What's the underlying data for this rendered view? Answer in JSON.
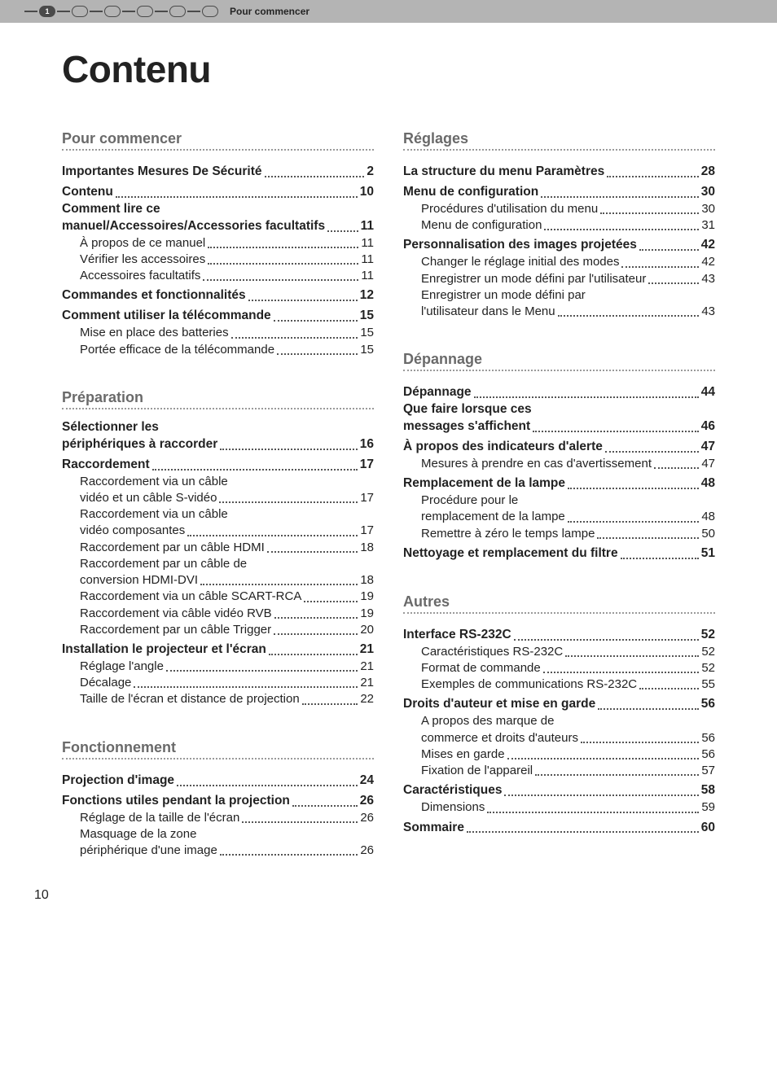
{
  "header": {
    "breadcrumb": "Pour commencer",
    "pill_number": "1"
  },
  "title": "Contenu",
  "page_number": "10",
  "left": {
    "sec1": {
      "heading": "Pour commencer",
      "items": [
        {
          "label": "Importantes Mesures De Sécurité",
          "page": "2",
          "bold": true
        },
        {
          "label": "Contenu",
          "page": "10",
          "bold": true
        },
        {
          "label": "Comment lire ce manuel/Accessoires/Accessories facultatifs",
          "page": "11",
          "bold": true,
          "multi": true
        },
        {
          "label": "À propos de ce manuel",
          "page": "11",
          "sub": true
        },
        {
          "label": "Vérifier les accessoires",
          "page": "11",
          "sub": true
        },
        {
          "label": "Accessoires facultatifs",
          "page": "11",
          "sub": true
        },
        {
          "label": "Commandes et fonctionnalités",
          "page": "12",
          "bold": true
        },
        {
          "label": "Comment utiliser la télécommande",
          "page": "15",
          "bold": true
        },
        {
          "label": "Mise en place des batteries",
          "page": "15",
          "sub": true
        },
        {
          "label": "Portée efficace de la télécommande",
          "page": "15",
          "sub": true
        }
      ]
    },
    "sec2": {
      "heading": "Préparation",
      "items": [
        {
          "label": "Sélectionner les périphériques à raccorder",
          "page": "16",
          "bold": true,
          "multi": true
        },
        {
          "label": "Raccordement",
          "page": "17",
          "bold": true
        },
        {
          "label": "Raccordement via un câble vidéo et un câble S-vidéo",
          "page": "17",
          "sub": true,
          "multi": true
        },
        {
          "label": "Raccordement via un câble vidéo composantes",
          "page": "17",
          "sub": true,
          "multi": true
        },
        {
          "label": "Raccordement par un câble HDMI",
          "page": "18",
          "sub": true
        },
        {
          "label": "Raccordement par un câble de conversion HDMI-DVI",
          "page": "18",
          "sub": true,
          "multi": true
        },
        {
          "label": "Raccordement via un câble SCART-RCA",
          "page": "19",
          "sub": true
        },
        {
          "label": "Raccordement via câble vidéo RVB",
          "page": "19",
          "sub": true
        },
        {
          "label": "Raccordement par un câble Trigger",
          "page": "20",
          "sub": true
        },
        {
          "label": "Installation le projecteur et l'écran",
          "page": "21",
          "bold": true
        },
        {
          "label": "Réglage l'angle",
          "page": "21",
          "sub": true
        },
        {
          "label": "Décalage",
          "page": "21",
          "sub": true
        },
        {
          "label": "Taille de l'écran et distance de projection",
          "page": "22",
          "sub": true
        }
      ]
    },
    "sec3": {
      "heading": "Fonctionnement",
      "items": [
        {
          "label": "Projection d'image",
          "page": "24",
          "bold": true
        },
        {
          "label": "Fonctions utiles pendant la projection",
          "page": "26",
          "bold": true
        },
        {
          "label": "Réglage de la taille de l'écran",
          "page": "26",
          "sub": true
        },
        {
          "label": "Masquage de la zone périphérique d'une image",
          "page": "26",
          "sub": true,
          "multi": true
        }
      ]
    }
  },
  "right": {
    "sec1": {
      "heading": "Réglages",
      "items": [
        {
          "label": "La structure du menu Paramètres",
          "page": "28",
          "bold": true
        },
        {
          "label": "Menu de configuration",
          "page": "30",
          "bold": true
        },
        {
          "label": "Procédures d'utilisation du menu",
          "page": "30",
          "sub": true
        },
        {
          "label": "Menu de configuration",
          "page": "31",
          "sub": true
        },
        {
          "label": "Personnalisation des images projetées",
          "page": "42",
          "bold": true
        },
        {
          "label": "Changer le réglage initial des modes",
          "page": "42",
          "sub": true
        },
        {
          "label": "Enregistrer un mode défini par l'utilisateur",
          "page": "43",
          "sub": true
        },
        {
          "label": "Enregistrer un mode défini par l'utilisateur dans le Menu",
          "page": "43",
          "sub": true,
          "multi": true
        }
      ]
    },
    "sec2": {
      "heading": "Dépannage",
      "items": [
        {
          "label": "Dépannage",
          "page": "44",
          "bold": true
        },
        {
          "label": "Que faire lorsque ces messages s'affichent",
          "page": "46",
          "bold": true,
          "multi": true
        },
        {
          "label": "À propos des indicateurs d'alerte",
          "page": "47",
          "bold": true
        },
        {
          "label": "Mesures à prendre en cas d'avertissement",
          "page": "47",
          "sub": true
        },
        {
          "label": "Remplacement de la lampe",
          "page": "48",
          "bold": true
        },
        {
          "label": "Procédure pour le remplacement de la lampe",
          "page": "48",
          "sub": true,
          "multi": true
        },
        {
          "label": "Remettre à zéro le temps lampe",
          "page": "50",
          "sub": true
        },
        {
          "label": "Nettoyage et remplacement du filtre",
          "page": "51",
          "bold": true
        }
      ]
    },
    "sec3": {
      "heading": "Autres",
      "items": [
        {
          "label": "Interface RS-232C",
          "page": "52",
          "bold": true
        },
        {
          "label": "Caractéristiques RS-232C",
          "page": "52",
          "sub": true
        },
        {
          "label": "Format de commande",
          "page": "52",
          "sub": true
        },
        {
          "label": "Exemples de communications RS-232C",
          "page": "55",
          "sub": true
        },
        {
          "label": "Droits d'auteur et mise en garde",
          "page": "56",
          "bold": true
        },
        {
          "label": "A propos des marque de commerce et droits d'auteurs",
          "page": "56",
          "sub": true,
          "multi": true
        },
        {
          "label": "Mises en garde",
          "page": "56",
          "sub": true
        },
        {
          "label": "Fixation de l'appareil",
          "page": "57",
          "sub": true
        },
        {
          "label": "Caractéristiques",
          "page": "58",
          "bold": true
        },
        {
          "label": "Dimensions",
          "page": "59",
          "sub": true
        },
        {
          "label": "Sommaire",
          "page": "60",
          "bold": true
        }
      ]
    }
  }
}
